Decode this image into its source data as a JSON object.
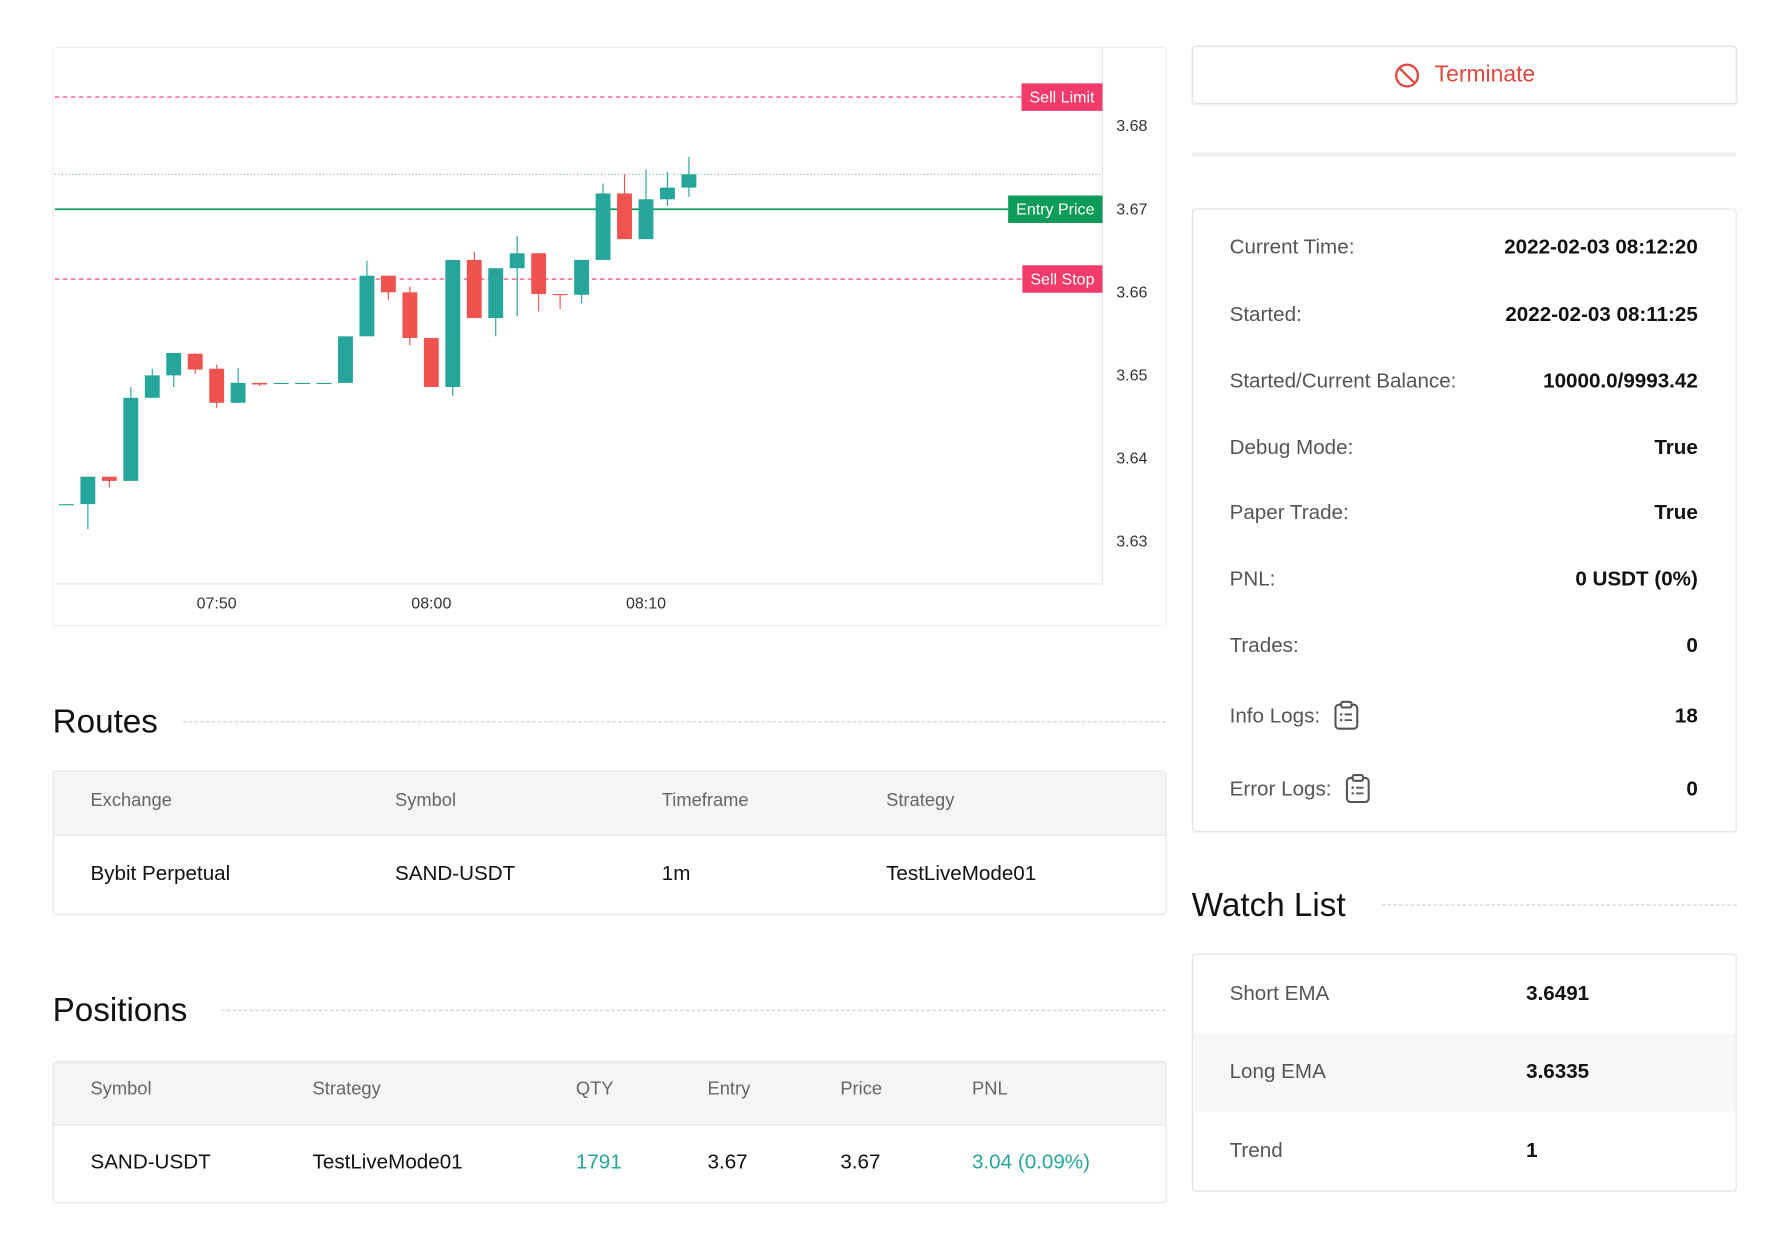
{
  "chart_data": {
    "type": "candlestick",
    "categories": [
      null,
      null,
      null,
      null,
      null,
      null,
      null,
      "07:50",
      null,
      null,
      null,
      null,
      null,
      null,
      null,
      null,
      null,
      "08:00",
      null,
      null,
      null,
      null,
      null,
      null,
      null,
      null,
      null,
      "08:10",
      null,
      null
    ],
    "open": [
      3.6346,
      3.6346,
      3.6379,
      3.6374,
      3.6474,
      3.6501,
      3.6527,
      3.6509,
      3.6468,
      3.6492,
      3.6492,
      3.6492,
      3.6492,
      3.6492,
      3.6548,
      3.6621,
      3.6601,
      3.6546,
      3.6487,
      3.664,
      3.657,
      3.663,
      3.6648,
      3.6599,
      3.6598,
      3.664,
      3.672,
      3.6665,
      3.6713,
      3.6727
    ],
    "high": [
      3.6346,
      3.6379,
      3.6379,
      3.6487,
      3.6509,
      3.6528,
      3.6528,
      3.6514,
      3.651,
      3.6492,
      3.6492,
      3.6492,
      3.6492,
      3.6548,
      3.6639,
      3.6621,
      3.6608,
      3.6546,
      3.664,
      3.665,
      3.663,
      3.6669,
      3.6648,
      3.6599,
      3.664,
      3.6732,
      3.6743,
      3.6749,
      3.6746,
      3.6764
    ],
    "low": [
      3.6346,
      3.6316,
      3.6366,
      3.6374,
      3.6474,
      3.6487,
      3.6503,
      3.6462,
      3.6468,
      3.6488,
      3.6492,
      3.6492,
      3.6492,
      3.6492,
      3.6548,
      3.6592,
      3.6537,
      3.6487,
      3.6476,
      3.657,
      3.6548,
      3.6572,
      3.6578,
      3.6581,
      3.6588,
      3.664,
      3.6665,
      3.6665,
      3.6705,
      3.6716
    ],
    "close": [
      3.6346,
      3.6379,
      3.6374,
      3.6474,
      3.6501,
      3.6528,
      3.6508,
      3.6468,
      3.6492,
      3.649,
      3.6492,
      3.6492,
      3.6492,
      3.6548,
      3.6621,
      3.6601,
      3.6546,
      3.6487,
      3.664,
      3.657,
      3.663,
      3.6648,
      3.6599,
      3.6598,
      3.664,
      3.672,
      3.6665,
      3.6713,
      3.6727,
      3.6743
    ],
    "up_color": "#26a69a",
    "down_color": "#ef5350",
    "ylim": [
      3.625,
      3.6895
    ],
    "yticks": [
      3.63,
      3.64,
      3.65,
      3.66,
      3.67,
      3.68
    ],
    "grid": false,
    "price_lines": [
      {
        "name": "Sell Limit",
        "value": 3.6836,
        "color": "#f23a6b",
        "style": "dashed"
      },
      {
        "name": "Entry Price",
        "value": 3.6701,
        "color": "#0c9b58",
        "style": "solid"
      },
      {
        "name": "Sell Stop",
        "value": 3.6617,
        "color": "#f23a6b",
        "style": "dashed"
      }
    ],
    "last_price": 3.6743
  },
  "terminate_button": "Terminate",
  "routes": {
    "title": "Routes",
    "columns": [
      "Exchange",
      "Symbol",
      "Timeframe",
      "Strategy"
    ],
    "rows": [
      [
        "Bybit Perpetual",
        "SAND-USDT",
        "1m",
        "TestLiveMode01"
      ]
    ]
  },
  "positions": {
    "title": "Positions",
    "columns": [
      "Symbol",
      "Strategy",
      "QTY",
      "Entry",
      "Price",
      "PNL"
    ],
    "rows": [
      [
        "SAND-USDT",
        "TestLiveMode01",
        "1791",
        "3.67",
        "3.67",
        "3.04 (0.09%)"
      ]
    ]
  },
  "info": {
    "rows": [
      [
        "Current Time:",
        "2022-02-03 08:12:20"
      ],
      [
        "Started:",
        "2022-02-03 08:11:25"
      ],
      [
        "Started/Current Balance:",
        "10000.0/9993.42"
      ],
      [
        "Debug Mode:",
        "True"
      ],
      [
        "Paper Trade:",
        "True"
      ],
      [
        "PNL:",
        "0 USDT (0%)"
      ],
      [
        "Trades:",
        "0"
      ],
      [
        "Info Logs:",
        "18"
      ],
      [
        "Error Logs:",
        "0"
      ]
    ]
  },
  "watch_list": {
    "title": "Watch List",
    "rows": [
      [
        "Short EMA",
        "3.6491"
      ],
      [
        "Long EMA",
        "3.6335"
      ],
      [
        "Trend",
        "1"
      ]
    ]
  }
}
